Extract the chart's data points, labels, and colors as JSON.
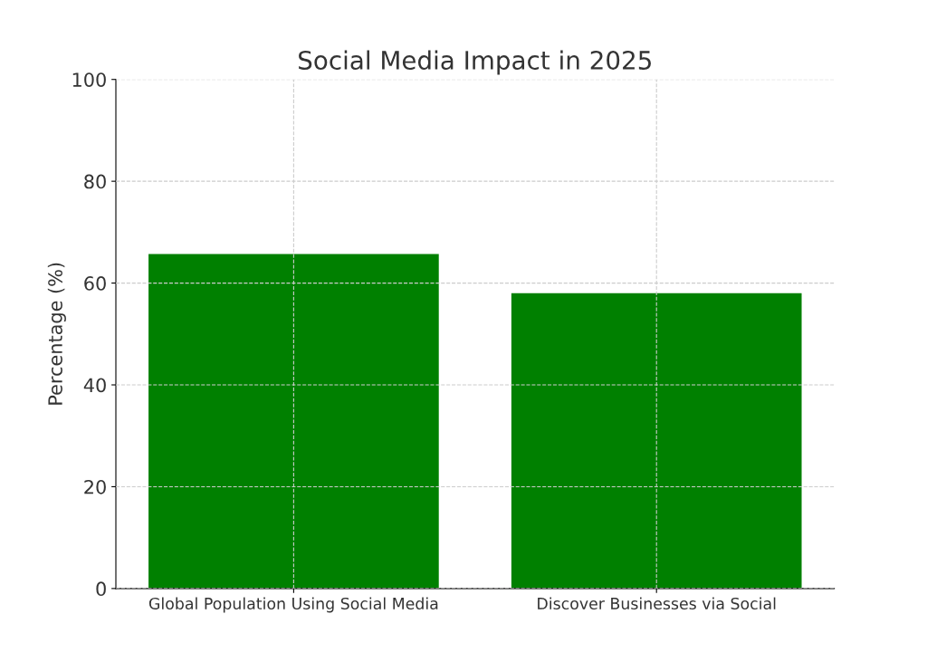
{
  "chart_data": {
    "type": "bar",
    "title": "Social Media Impact in 2025",
    "ylabel": "Percentage (%)",
    "categories": [
      "Global Population Using Social Media",
      "Discover Businesses via Social"
    ],
    "values": [
      65.7,
      58
    ],
    "color": "#008000",
    "ylim": [
      0,
      100
    ],
    "yticks": [
      0,
      20,
      40,
      60,
      80,
      100
    ],
    "grid": true
  }
}
